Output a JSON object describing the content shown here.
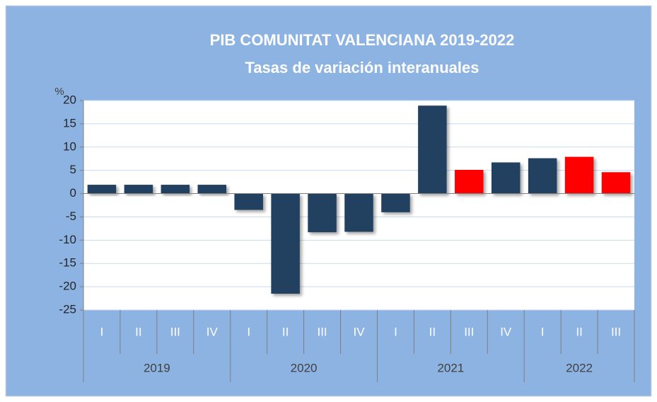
{
  "chart_data": {
    "type": "bar",
    "title": "PIB COMUNITAT VALENCIANA 2019-2022",
    "subtitle": "Tasas de variación interanuales",
    "y_label": "%",
    "groups": [
      {
        "name": "2019",
        "categories": [
          "I",
          "II",
          "III",
          "IV"
        ]
      },
      {
        "name": "2020",
        "categories": [
          "I",
          "II",
          "III",
          "IV"
        ]
      },
      {
        "name": "2021",
        "categories": [
          "I",
          "II",
          "III",
          "IV"
        ]
      },
      {
        "name": "2022",
        "categories": [
          "I",
          "II",
          "III"
        ]
      }
    ],
    "values": [
      1.9,
      1.9,
      1.9,
      1.9,
      -3.5,
      -21.5,
      -8.3,
      -8.2,
      -4.0,
      18.9,
      5.1,
      6.7,
      7.6,
      7.9,
      4.6
    ],
    "colors": [
      "#243f60",
      "#243f60",
      "#243f60",
      "#243f60",
      "#243f60",
      "#243f60",
      "#243f60",
      "#243f60",
      "#243f60",
      "#243f60",
      "#ff0000",
      "#243f60",
      "#243f60",
      "#ff0000",
      "#ff0000"
    ],
    "ylim": [
      -25,
      20
    ],
    "yticks": [
      -25,
      -20,
      -15,
      -10,
      -5,
      0,
      5,
      10,
      15,
      20
    ],
    "grid": true
  }
}
